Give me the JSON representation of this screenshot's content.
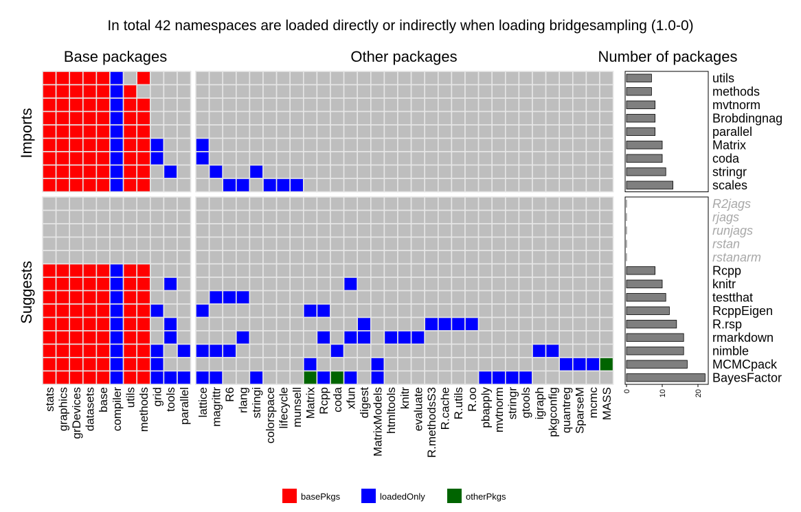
{
  "chart_data": {
    "type": "heatmap",
    "title": "In total 42 namespaces are loaded directly or indirectly when loading bridgesampling (1.0-0)",
    "panel_titles": [
      "Base packages",
      "Other packages",
      "Number of packages"
    ],
    "row_groups": [
      "Imports",
      "Suggests"
    ],
    "base_columns": [
      "stats",
      "graphics",
      "grDevices",
      "datasets",
      "base",
      "compiler",
      "utils",
      "methods",
      "grid",
      "tools",
      "parallel"
    ],
    "other_columns": [
      "lattice",
      "magrittr",
      "R6",
      "rlang",
      "stringi",
      "colorspace",
      "lifecycle",
      "munsell",
      "Matrix",
      "Rcpp",
      "coda",
      "xfun",
      "digest",
      "MatrixModels",
      "htmltools",
      "knitr",
      "evaluate",
      "R.methodsS3",
      "R.cache",
      "R.utils",
      "R.oo",
      "pbapply",
      "mvtnorm",
      "stringr",
      "gtools",
      "igraph",
      "pkgconfig",
      "quantreg",
      "SparseM",
      "mcmc",
      "MASS"
    ],
    "imports": {
      "packages": [
        "utils",
        "methods",
        "mvtnorm",
        "Brobdingnag",
        "parallel",
        "Matrix",
        "coda",
        "stringr",
        "scales"
      ],
      "counts": [
        7,
        7,
        8,
        8,
        8,
        10,
        10,
        11,
        13
      ]
    },
    "suggests": {
      "packages": [
        "R2jags",
        "rjags",
        "runjags",
        "rstan",
        "rstanarm",
        "Rcpp",
        "knitr",
        "testthat",
        "RcppEigen",
        "R.rsp",
        "rmarkdown",
        "nimble",
        "MCMCpack",
        "BayesFactor"
      ],
      "counts": [
        0,
        0,
        0,
        0,
        0,
        8,
        10,
        11,
        12,
        14,
        16,
        16,
        17,
        22
      ],
      "unavailable": [
        "R2jags",
        "rjags",
        "runjags",
        "rstan",
        "rstanarm"
      ]
    },
    "base_matrix_imports": [
      "RRRRRB.R...",
      "RRRRRBR....",
      "RRRRRBRR...",
      "RRRRRBRR...",
      "RRRRRBRR...",
      "RRRRRBRRB..",
      "RRRRRBRRB..",
      "RRRRRBRR.B.",
      "RRRRRBRR..."
    ],
    "other_matrix_imports": [
      "...............................",
      "...............................",
      "...............................",
      "...............................",
      "...............................",
      "B..............................",
      "B..............................",
      ".B..B..........................",
      "..BB.BBB......................."
    ],
    "base_matrix_suggests": [
      "...........",
      "...........",
      "...........",
      "...........",
      "...........",
      "RRRRRBRR...",
      "RRRRRBRR.B.",
      "RRRRRBRR...",
      "RRRRRBRRB..",
      "RRRRRBRR.B.",
      "RRRRRBRR.B.",
      "RRRRRBRRB.B",
      "RRRRRBRRB..",
      "RRRRRBRRBBB"
    ],
    "other_matrix_suggests": [
      "...............................",
      "...............................",
      "...............................",
      "...............................",
      "...............................",
      "...............................",
      "...........B...................",
      ".BBB...........................",
      "B.......BB.....................",
      "............B....BBBB..........",
      "...B.....B.BB.BBB..............",
      "BBB.......B..............BB....",
      "........B....B.............BBBG",
      "BB..B...GBGB.B.......BBBB......"
    ],
    "xlabel": "",
    "ylabel": "",
    "xaxis_ticks": [
      0,
      10,
      20
    ],
    "xlim": [
      0,
      22.5
    ],
    "grid": false,
    "legend_position": "bottom",
    "legend": [
      {
        "key": "R",
        "label": "basePkgs",
        "color": "#ff0000"
      },
      {
        "key": "B",
        "label": "loadedOnly",
        "color": "#0000ff"
      },
      {
        "key": "G",
        "label": "otherPkgs",
        "color": "#006400"
      }
    ],
    "empty_color": "#bebebe",
    "bar_color": "#7f7f7f"
  }
}
